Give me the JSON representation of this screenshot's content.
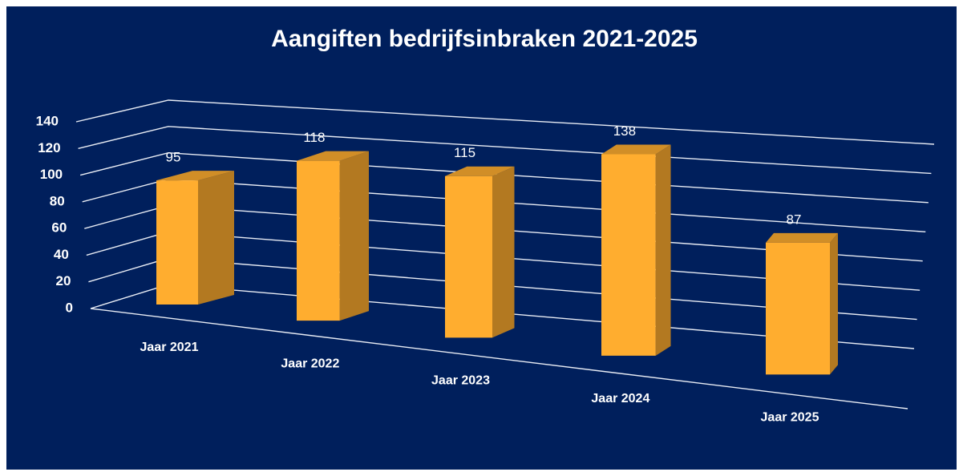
{
  "chart_data": {
    "type": "bar3d",
    "title": "Aangiften bedrijfsinbraken 2021-2025",
    "categories": [
      "Jaar 2021",
      "Jaar 2022",
      "Jaar 2023",
      "Jaar 2024",
      "Jaar 2025"
    ],
    "values": [
      95,
      118,
      115,
      138,
      87
    ],
    "color": "#ffad2f",
    "ylim": [
      0,
      140
    ],
    "yticks": [
      0,
      20,
      40,
      60,
      80,
      100,
      120,
      140
    ],
    "grid": true
  }
}
